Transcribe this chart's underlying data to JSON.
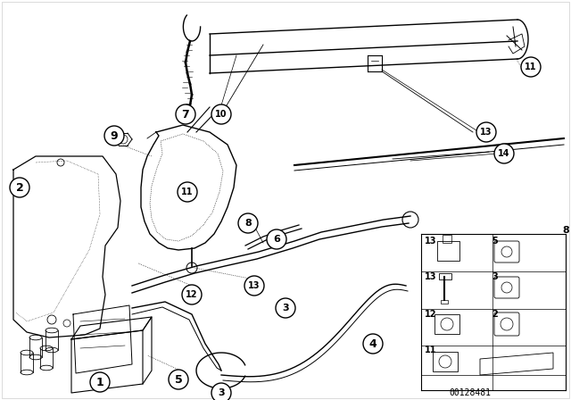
{
  "bg_color": "#ffffff",
  "line_color": "#000000",
  "part_number": "00128481",
  "figsize": [
    6.4,
    4.48
  ],
  "dpi": 100
}
